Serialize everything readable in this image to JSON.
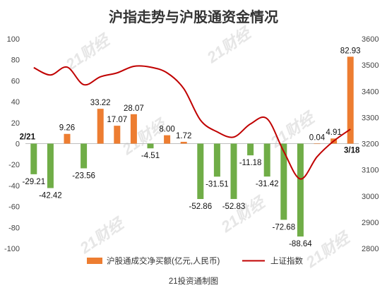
{
  "chart_data": {
    "type": "bar",
    "title": "沪指走势与沪股通资金情况",
    "source": "21投资通制图",
    "watermark": "21财经",
    "xlabel": "",
    "ylabel": "",
    "ylim": [
      -100,
      100
    ],
    "y2lim": [
      2800,
      3600
    ],
    "y_ticks": [
      100,
      80,
      60,
      40,
      20,
      0,
      -20,
      -40,
      -60,
      -80,
      -100
    ],
    "y2_ticks": [
      3600,
      3500,
      3400,
      3300,
      3200,
      3100,
      3000,
      2900,
      2800
    ],
    "start_label": "2/21",
    "end_label": "3/18",
    "grid": false,
    "legend_position": "bottom",
    "positive_color": "#ED7D31",
    "negative_color": "#70AD47",
    "line_color": "#C00000",
    "series": [
      {
        "name": "沪股通成交净买额(亿元,人民币)",
        "type": "bar",
        "axis": "left",
        "values": [
          -29.21,
          -42.42,
          9.26,
          -23.56,
          33.22,
          17.07,
          28.07,
          -4.51,
          8.0,
          1.72,
          -52.86,
          -31.51,
          -52.83,
          -11.18,
          -31.42,
          -72.68,
          -88.64,
          0.04,
          4.91,
          82.93
        ]
      },
      {
        "name": "上证指数",
        "type": "line",
        "axis": "right",
        "values": [
          3490,
          3462,
          3492,
          3425,
          3455,
          3470,
          3495,
          3492,
          3470,
          3410,
          3290,
          3245,
          3225,
          3275,
          3295,
          3170,
          3065,
          3150,
          3210,
          3255
        ]
      }
    ]
  }
}
